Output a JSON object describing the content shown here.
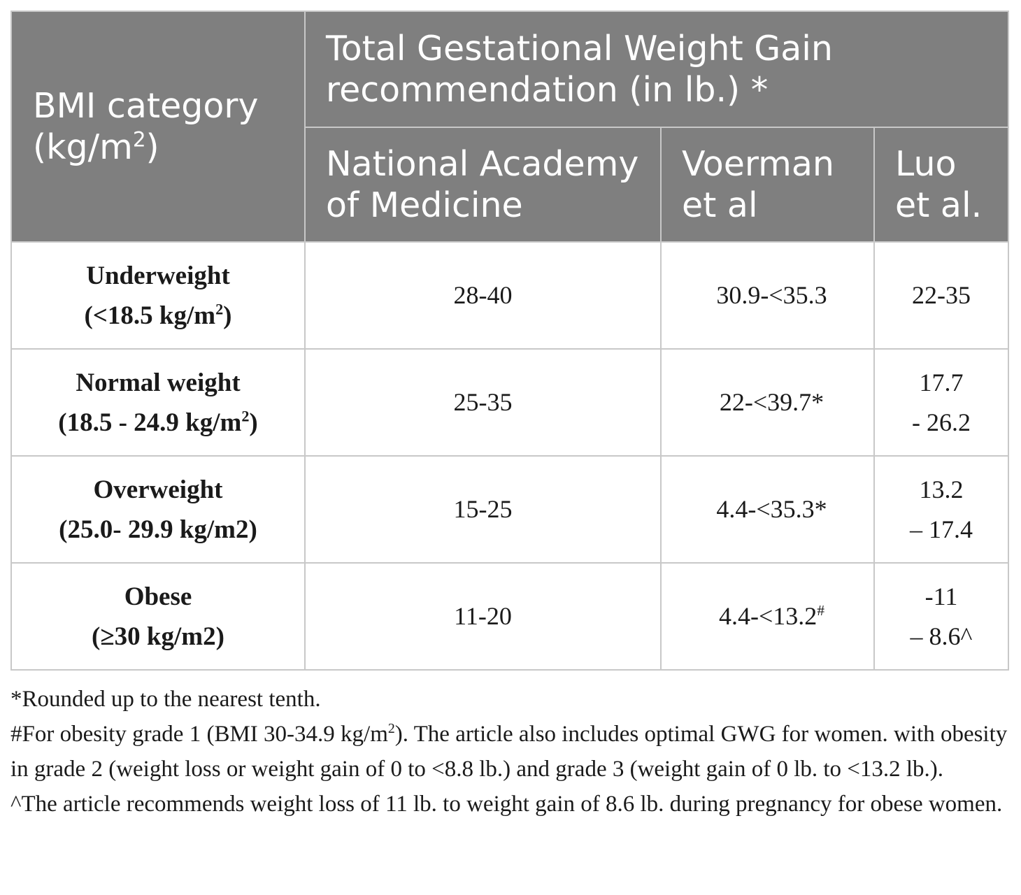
{
  "header": {
    "bmi_label": "BMI category",
    "bmi_unit_pre": "(kg/m",
    "bmi_unit_sup": "2",
    "bmi_unit_post": ")",
    "group_title_line1": "Total Gestational Weight Gain",
    "group_title_line2": "recommendation (in lb.) *",
    "col_nam_line1": "National Academy",
    "col_nam_line2": "of Medicine",
    "col_voerman_line1": "Voerman",
    "col_voerman_line2": "et al",
    "col_luo_line1": "Luo",
    "col_luo_line2": "et al."
  },
  "rows": [
    {
      "name": "Underweight",
      "range_pre": "(<18.5 kg/m",
      "range_sup": "2",
      "range_post": ")",
      "nam": "28-40",
      "voerman_main": "30.9-<35.3",
      "voerman_sup": "",
      "luo_line1": "22-35",
      "luo_line2": ""
    },
    {
      "name": "Normal weight",
      "range_pre": "(18.5 - 24.9 kg/m",
      "range_sup": "2",
      "range_post": ")",
      "nam": "25-35",
      "voerman_main": "22-<39.7*",
      "voerman_sup": "",
      "luo_line1": "17.7",
      "luo_line2": "- 26.2"
    },
    {
      "name": "Overweight",
      "range_pre": "(25.0- 29.9 kg/m2)",
      "range_sup": "",
      "range_post": "",
      "nam": "15-25",
      "voerman_main": "4.4-<35.3*",
      "voerman_sup": "",
      "luo_line1": "13.2",
      "luo_line2": "– 17.4"
    },
    {
      "name": "Obese",
      "range_pre": "(≥30 kg/m2)",
      "range_sup": "",
      "range_post": "",
      "nam": "11-20",
      "voerman_main": "4.4-<13.2",
      "voerman_sup": "#",
      "luo_line1": "-11",
      "luo_line2": "– 8.6^"
    }
  ],
  "notes": {
    "n1": "*Rounded up to the nearest tenth.",
    "n2_pre": "#For obesity grade 1 (BMI 30-34.9 kg/m",
    "n2_sup": "2",
    "n2_post": "). The article also includes optimal GWG for women. with obesity in grade 2 (weight loss or weight gain of 0 to <8.8 lb.) and grade 3 (weight gain of 0 lb. to <13.2 lb.).",
    "n3": "^The article recommends weight loss of 11 lb. to weight gain of 8.6 lb. during pregnancy for obese women."
  }
}
